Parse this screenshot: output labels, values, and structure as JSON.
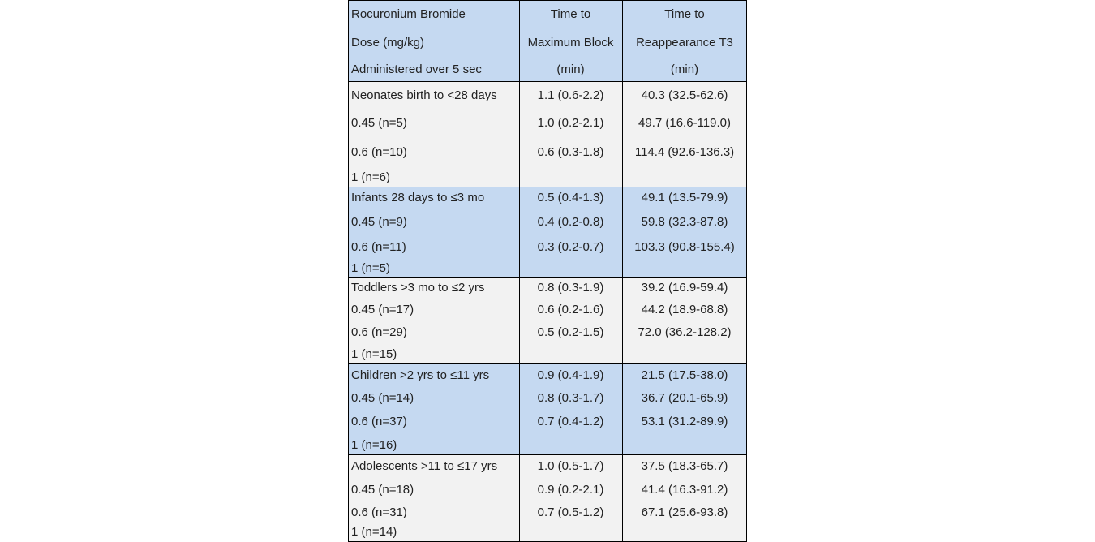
{
  "table": {
    "header": [
      [
        "Rocuronium Bromide",
        "Dose (mg/kg)",
        "Administered over 5 sec"
      ],
      [
        "Time to",
        "Maximum Block",
        "(min)"
      ],
      [
        "Time to",
        "Reappearance T3",
        "(min)"
      ]
    ],
    "groups": [
      {
        "rows": [
          [
            "Neonates birth to <28 days",
            "1.1 (0.6-2.2)",
            "40.3 (32.5-62.6)"
          ],
          [
            "0.45 (n=5)",
            "1.0 (0.2-2.1)",
            "49.7 (16.6-119.0)"
          ],
          [
            "0.6 (n=10)",
            "0.6 (0.3-1.8)",
            "114.4 (92.6-136.3)"
          ],
          [
            "1 (n=6)"
          ]
        ]
      },
      {
        "rows": [
          [
            "Infants 28 days to ≤3 mo",
            "0.5 (0.4-1.3)",
            "49.1 (13.5-79.9)"
          ],
          [
            "0.45 (n=9)",
            "0.4 (0.2-0.8)",
            "59.8 (32.3-87.8)"
          ],
          [
            "0.6 (n=11)",
            "0.3 (0.2-0.7)",
            "103.3 (90.8-155.4)"
          ],
          [
            "1 (n=5)"
          ]
        ]
      },
      {
        "rows": [
          [
            "Toddlers >3 mo to ≤2 yrs",
            "0.8 (0.3-1.9)",
            "39.2 (16.9-59.4)"
          ],
          [
            "0.45 (n=17)",
            "0.6 (0.2-1.6)",
            "44.2 (18.9-68.8)"
          ],
          [
            "0.6 (n=29)",
            "0.5 (0.2-1.5)",
            "72.0 (36.2-128.2)"
          ],
          [
            "1 (n=15)"
          ]
        ]
      },
      {
        "rows": [
          [
            "Children >2 yrs to ≤11 yrs",
            "0.9 (0.4-1.9)",
            "21.5 (17.5-38.0)"
          ],
          [
            "0.45 (n=14)",
            "0.8 (0.3-1.7)",
            "36.7 (20.1-65.9)"
          ],
          [
            "0.6 (n=37)",
            "0.7 (0.4-1.2)",
            "53.1 (31.2-89.9)"
          ],
          [
            "1 (n=16)"
          ]
        ]
      },
      {
        "rows": [
          [
            "Adolescents >11 to ≤17 yrs",
            "1.0 (0.5-1.7)",
            "37.5 (18.3-65.7)"
          ],
          [
            "0.45 (n=18)",
            "0.9 (0.2-2.1)",
            "41.4 (16.3-91.2)"
          ],
          [
            "0.6 (n=31)",
            "0.7 (0.5-1.2)",
            "67.1 (25.6-93.8)"
          ],
          [
            "1 (n=14)"
          ]
        ]
      }
    ]
  }
}
